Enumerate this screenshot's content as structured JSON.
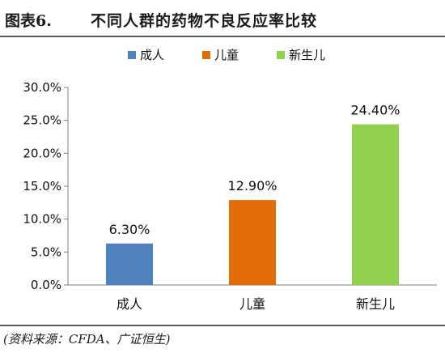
{
  "figure": {
    "label": "图表6.",
    "title": "不同人群的药物不良反应率比较",
    "source": "(资料来源：CFDA、广证恒生)"
  },
  "chart_data": {
    "type": "bar",
    "categories": [
      "成人",
      "儿童",
      "新生儿"
    ],
    "values": [
      6.3,
      12.9,
      24.4
    ],
    "data_labels": [
      "6.30%",
      "12.90%",
      "24.40%"
    ],
    "colors": [
      "#4f81bd",
      "#e36c0a",
      "#92d050"
    ],
    "legend": [
      "成人",
      "儿童",
      "新生儿"
    ],
    "legend_position": "top",
    "ylim": [
      0,
      30
    ],
    "yticks": [
      0,
      5,
      10,
      15,
      20,
      25,
      30
    ],
    "ytick_labels": [
      "0.0%",
      "5.0%",
      "10.0%",
      "15.0%",
      "20.0%",
      "25.0%",
      "30.0%"
    ],
    "grid": false,
    "xlabel": "",
    "ylabel": ""
  }
}
